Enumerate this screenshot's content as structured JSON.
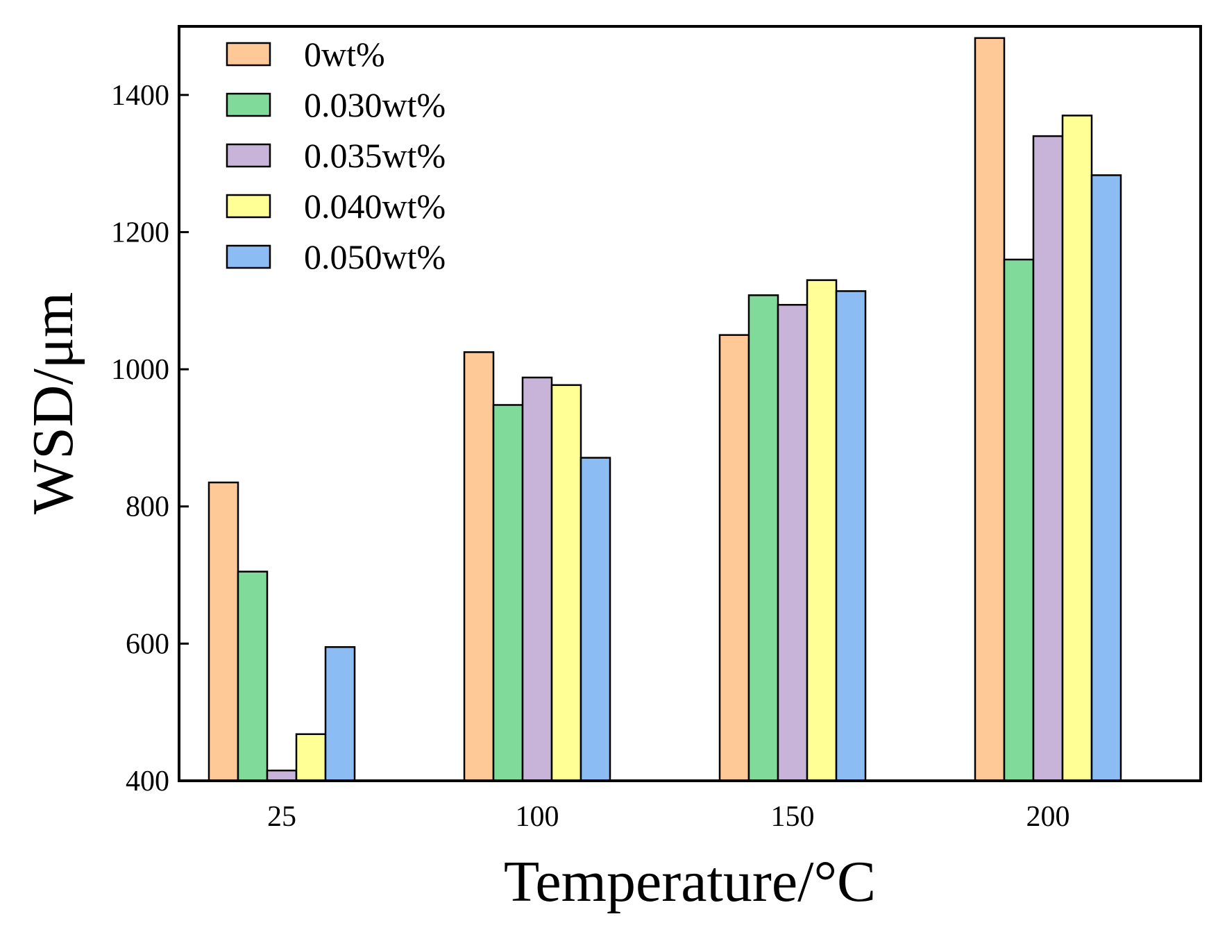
{
  "chart_data": {
    "type": "bar",
    "title": "",
    "xlabel": "Temperature/°C",
    "ylabel": "WSD/μm",
    "categories": [
      "25",
      "100",
      "150",
      "200"
    ],
    "ylim": [
      400,
      1500
    ],
    "yticks": [
      400,
      600,
      800,
      1000,
      1200,
      1400
    ],
    "grid": false,
    "legend_position": "top-left",
    "series": [
      {
        "name": "0wt%",
        "color": "#FFC896",
        "values": [
          835,
          1025,
          1050,
          1483
        ]
      },
      {
        "name": "0.030wt%",
        "color": "#80DA9A",
        "values": [
          705,
          948,
          1108,
          1160
        ]
      },
      {
        "name": "0.035wt%",
        "color": "#C8B4D8",
        "values": [
          415,
          988,
          1094,
          1340
        ]
      },
      {
        "name": "0.040wt%",
        "color": "#FFFF96",
        "values": [
          468,
          977,
          1130,
          1370
        ]
      },
      {
        "name": "0.050wt%",
        "color": "#8CBCF4",
        "values": [
          595,
          871,
          1114,
          1283
        ]
      }
    ]
  }
}
